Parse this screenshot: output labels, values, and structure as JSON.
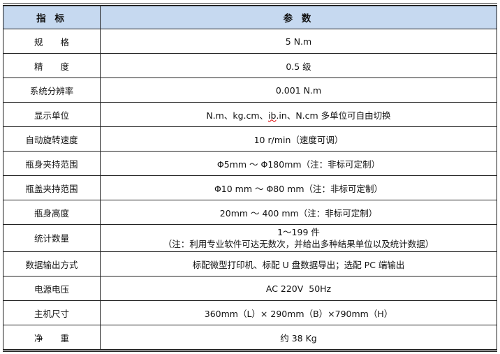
{
  "header": {
    "col1": "指 标",
    "col2": "参 数"
  },
  "rows": [
    {
      "label": "规　　格",
      "value": "5 N.m"
    },
    {
      "label": "精　　度",
      "value": "0.5 级"
    },
    {
      "label": "系统分辨率",
      "value": "0.001 N.m"
    },
    {
      "label": "显示单位",
      "value_pre": "N.m、kg.cm、",
      "value_err": "ib",
      "value_post": ".in、N.cm 多单位可自由切换"
    },
    {
      "label": "自动旋转速度",
      "value": "10 r/min（速度可调）"
    },
    {
      "label": "瓶身夹持范围",
      "value": "Φ5mm ～ Φ180mm（注：非标可定制）"
    },
    {
      "label": "瓶盖夹持范围",
      "value": "Φ10 mm ～ Φ80 mm（注：非标可定制）"
    },
    {
      "label": "瓶身高度",
      "value": "20mm ～ 400 mm（注：非标可定制）"
    },
    {
      "label": "统计数量",
      "value": "1～199 件",
      "value2": "（注：利用专业软件可达无数次，并给出多种结果单位以及统计数据）"
    },
    {
      "label": "数据输出方式",
      "value": "标配微型打印机、标配 U 盘数据导出；选配 PC 端输出"
    },
    {
      "label": "电源电压",
      "value": "AC 220V  50Hz"
    },
    {
      "label": "主机尺寸",
      "value": "360mm（L）× 290mm（B）×790mm（H）"
    },
    {
      "label": "净　　重",
      "value": "约 38 Kg"
    }
  ],
  "colors": {
    "header_bg": "#c6d9f0",
    "spellcheck_underline": "#dd0000"
  }
}
